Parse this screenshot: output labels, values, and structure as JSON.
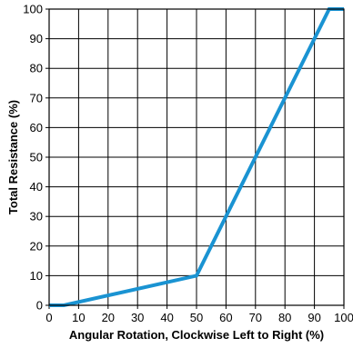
{
  "chart_data": {
    "type": "line",
    "title": "",
    "xlabel": "Angular Rotation, Clockwise Left to Right (%)",
    "ylabel": "Total Resistance (%)",
    "xlim": [
      0,
      100
    ],
    "ylim": [
      0,
      100
    ],
    "xticks": [
      0,
      10,
      20,
      30,
      40,
      50,
      60,
      70,
      80,
      90,
      100
    ],
    "yticks": [
      0,
      10,
      20,
      30,
      40,
      50,
      60,
      70,
      80,
      90,
      100
    ],
    "grid": true,
    "legend": "none",
    "series": [
      {
        "x": [
          0,
          5,
          50,
          95,
          100
        ],
        "y": [
          0,
          0,
          10,
          100,
          100
        ],
        "color": "#1a93d2"
      }
    ]
  }
}
